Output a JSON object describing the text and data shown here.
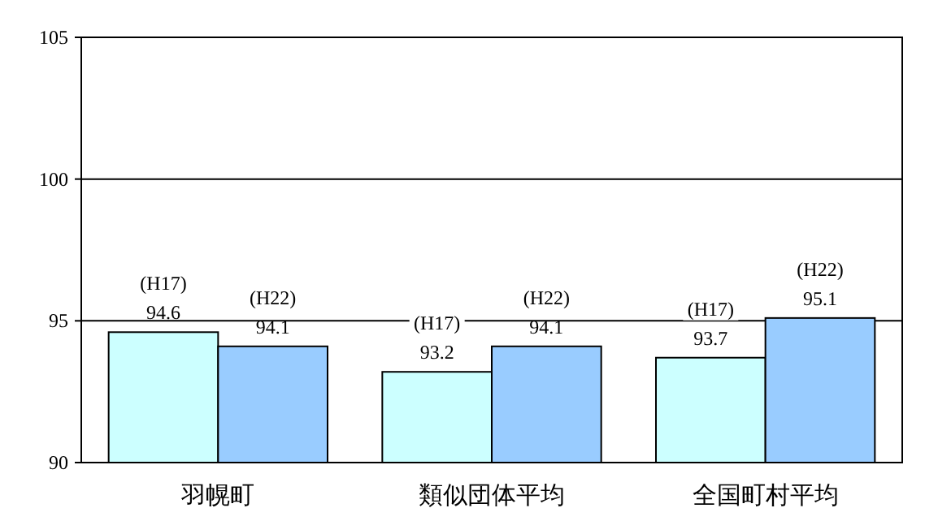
{
  "chart_data": {
    "type": "bar",
    "categories": [
      "羽幌町",
      "類似団体平均",
      "全国町村平均"
    ],
    "series": [
      {
        "name": "(H17)",
        "color": "#ccffff",
        "values": [
          94.6,
          93.2,
          93.7
        ]
      },
      {
        "name": "(H22)",
        "color": "#99ccff",
        "values": [
          94.1,
          94.1,
          95.1
        ]
      }
    ],
    "ylim": [
      90,
      105
    ],
    "yticks": [
      90,
      95,
      100,
      105
    ],
    "grid": "y",
    "data_labels": true
  }
}
